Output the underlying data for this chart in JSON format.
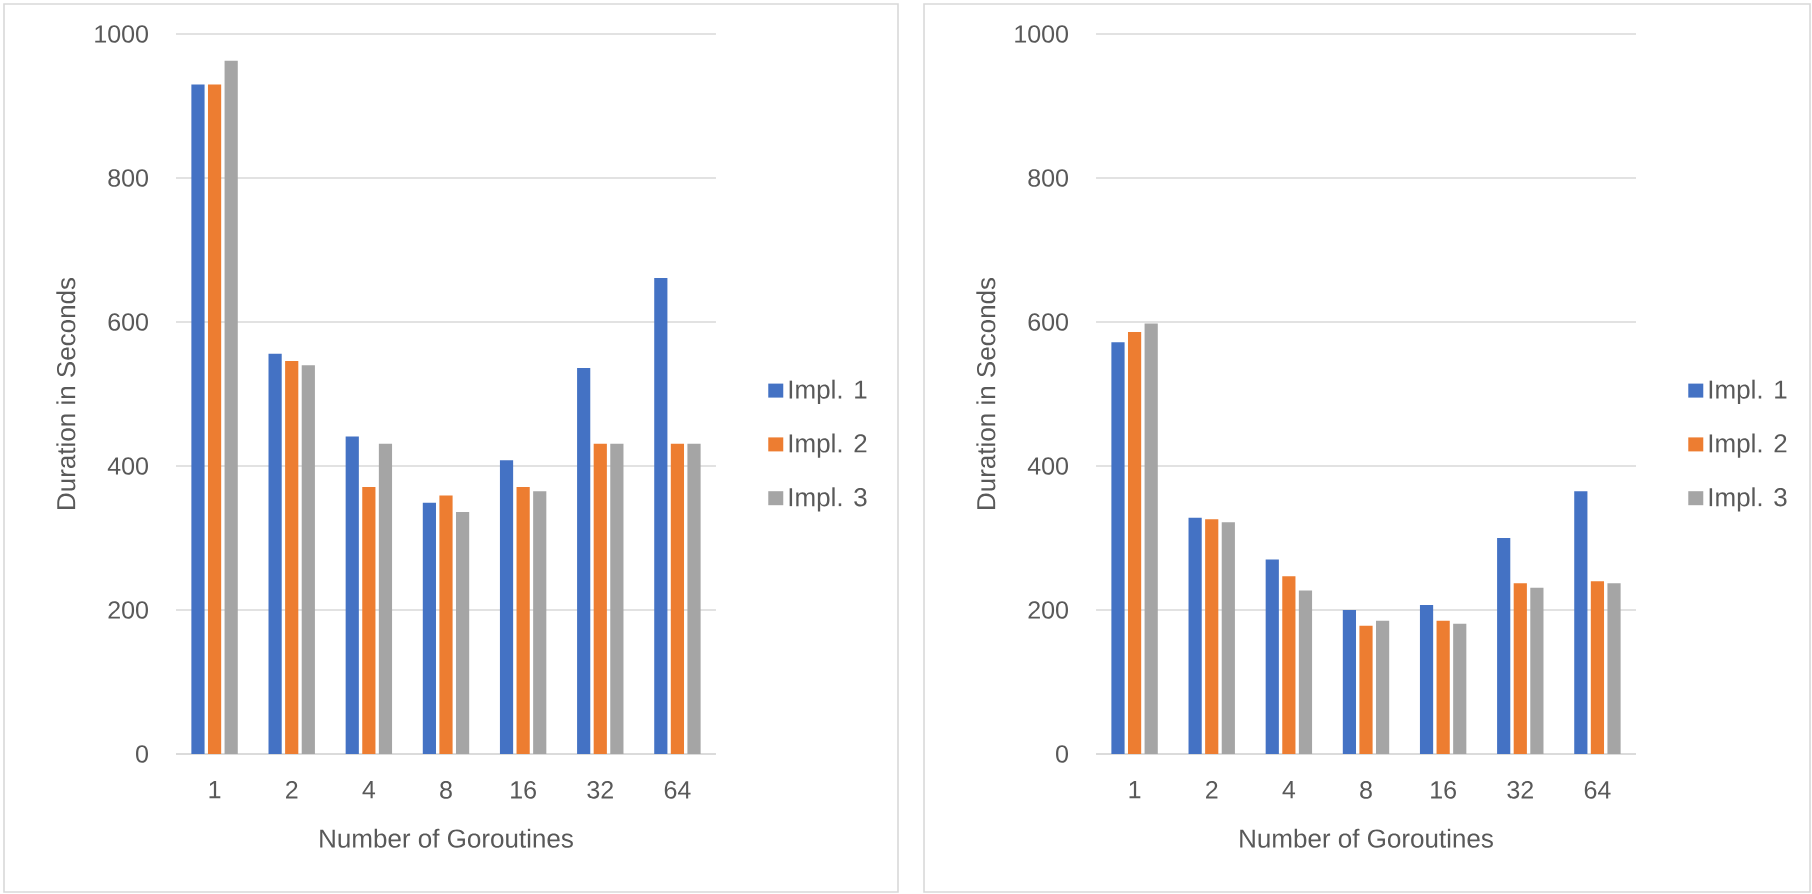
{
  "chart_data": [
    {
      "type": "bar",
      "categories": [
        "1",
        "2",
        "4",
        "8",
        "16",
        "32",
        "64"
      ],
      "series": [
        {
          "name": "Impl. 1",
          "color": "#4472c4",
          "values": [
            930,
            556,
            441,
            349,
            408,
            536,
            661
          ]
        },
        {
          "name": "Impl. 2",
          "color": "#ed7d31",
          "values": [
            930,
            546,
            371,
            359,
            371,
            431,
            431
          ]
        },
        {
          "name": "Impl. 3",
          "color": "#a5a5a5",
          "values": [
            963,
            540,
            431,
            336,
            365,
            431,
            431
          ]
        }
      ],
      "xlabel": "Number of Goroutines",
      "ylabel": "Duration in Seconds",
      "ylim": [
        0,
        1000
      ],
      "yticks": [
        0,
        200,
        400,
        600,
        800,
        1000
      ],
      "grid": "y",
      "legend": "right"
    },
    {
      "type": "bar",
      "categories": [
        "1",
        "2",
        "4",
        "8",
        "16",
        "32",
        "64"
      ],
      "series": [
        {
          "name": "Impl. 1",
          "color": "#4472c4",
          "values": [
            572,
            328,
            270,
            200,
            207,
            300,
            365
          ]
        },
        {
          "name": "Impl. 2",
          "color": "#ed7d31",
          "values": [
            586,
            326,
            247,
            178,
            185,
            237,
            240
          ]
        },
        {
          "name": "Impl. 3",
          "color": "#a5a5a5",
          "values": [
            598,
            322,
            227,
            185,
            181,
            231,
            237
          ]
        }
      ],
      "xlabel": "Number of Goroutines",
      "ylabel": "Duration in Seconds",
      "ylim": [
        0,
        1000
      ],
      "yticks": [
        0,
        200,
        400,
        600,
        800,
        1000
      ],
      "grid": "y",
      "legend": "right"
    }
  ]
}
